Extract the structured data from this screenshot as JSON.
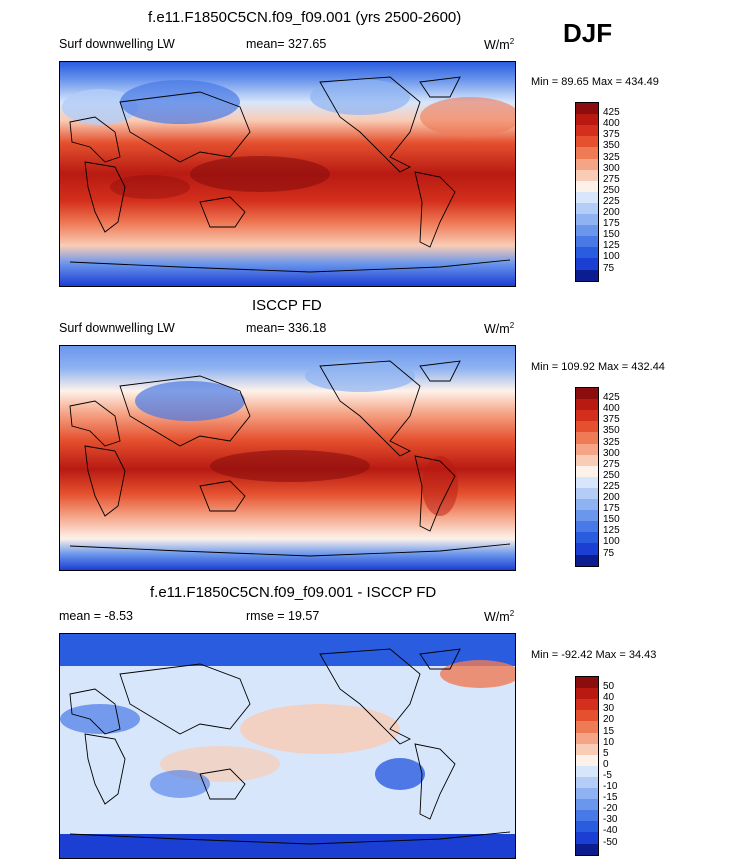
{
  "season": "DJF",
  "chart_data": [
    {
      "type": "heatmap",
      "title": "f.e11.F1850C5CN.f09_f09.001 (yrs 2500-2600)",
      "left_label": "Surf downwelling LW",
      "center_label": "mean= 327.65",
      "units": "W/m",
      "units_sup": "2",
      "min": 89.65,
      "max": 434.49,
      "minmax_text": "Min =  89.65 Max = 434.49",
      "levels": [
        "425",
        "400",
        "375",
        "350",
        "325",
        "300",
        "275",
        "250",
        "225",
        "200",
        "175",
        "150",
        "125",
        "100",
        "75"
      ],
      "colors": [
        "#8b0d0d",
        "#b81a12",
        "#d42f1c",
        "#e5512f",
        "#ef7a56",
        "#f5a486",
        "#f9ccb5",
        "#fdf2ea",
        "#d8e6fb",
        "#b3cdf7",
        "#8fb3f2",
        "#6a96ec",
        "#4879e6",
        "#2a5ce0",
        "#1b3ed3",
        "#0b1d8f"
      ]
    },
    {
      "type": "heatmap",
      "title": "ISCCP FD",
      "left_label": "Surf downwelling LW",
      "center_label": "mean= 336.18",
      "units": "W/m",
      "units_sup": "2",
      "min": 109.92,
      "max": 432.44,
      "minmax_text": "Min = 109.92 Max = 432.44",
      "levels": [
        "425",
        "400",
        "375",
        "350",
        "325",
        "300",
        "275",
        "250",
        "225",
        "200",
        "175",
        "150",
        "125",
        "100",
        "75"
      ],
      "colors": [
        "#8b0d0d",
        "#b81a12",
        "#d42f1c",
        "#e5512f",
        "#ef7a56",
        "#f5a486",
        "#f9ccb5",
        "#fdf2ea",
        "#d8e6fb",
        "#b3cdf7",
        "#8fb3f2",
        "#6a96ec",
        "#4879e6",
        "#2a5ce0",
        "#1b3ed3",
        "#0b1d8f"
      ]
    },
    {
      "type": "heatmap",
      "title": "f.e11.F1850C5CN.f09_f09.001 - ISCCP FD",
      "left_label": "mean =  -8.53",
      "center_label": "rmse =  19.57",
      "units": "W/m",
      "units_sup": "2",
      "min": -92.42,
      "max": 34.43,
      "minmax_text": "Min = -92.42 Max =  34.43",
      "levels": [
        "50",
        "40",
        "30",
        "20",
        "15",
        "10",
        "5",
        "0",
        "-5",
        "-10",
        "-15",
        "-20",
        "-30",
        "-40",
        "-50"
      ],
      "colors": [
        "#8b0d0d",
        "#b81a12",
        "#d42f1c",
        "#e5512f",
        "#ef7a56",
        "#f5a486",
        "#f9ccb5",
        "#fdf2ea",
        "#d8e6fb",
        "#b3cdf7",
        "#8fb3f2",
        "#6a96ec",
        "#4879e6",
        "#2a5ce0",
        "#1b3ed3",
        "#0b1d8f"
      ]
    }
  ]
}
